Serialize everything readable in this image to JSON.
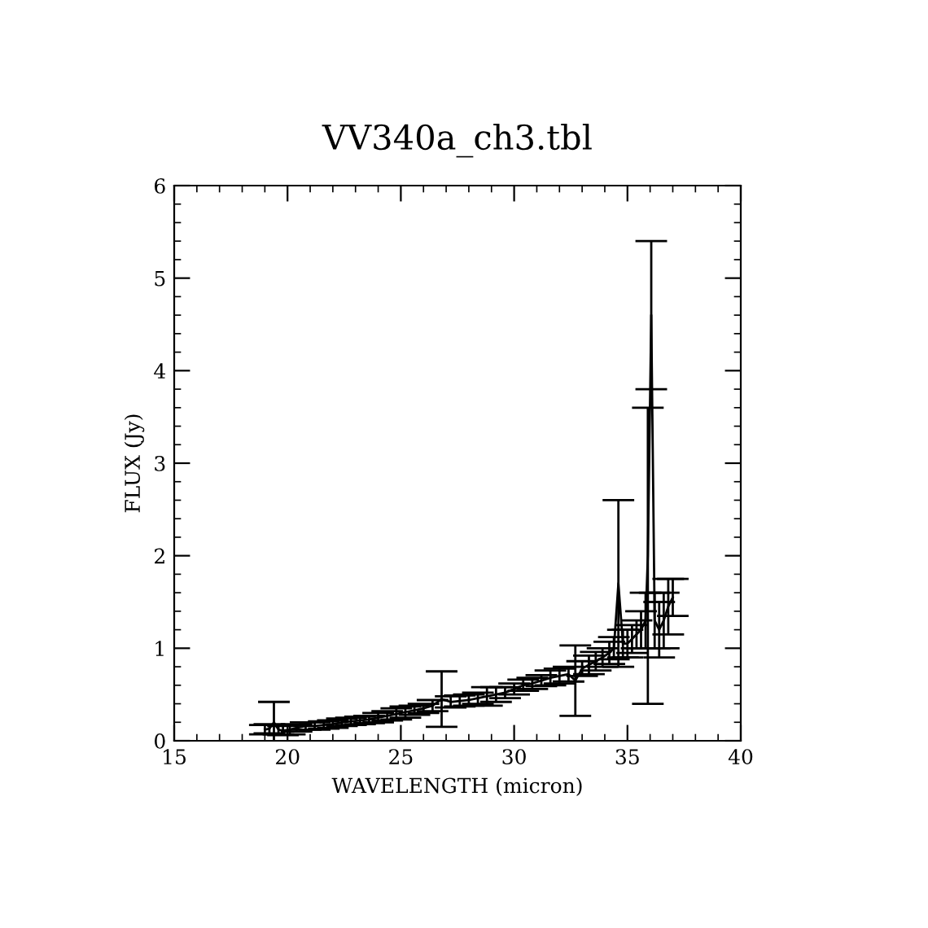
{
  "chart_data": {
    "type": "line",
    "title": "VV340a_ch3.tbl",
    "xlabel": "WAVELENGTH (micron)",
    "ylabel": "FLUX (Jy)",
    "xlim": [
      15,
      40
    ],
    "ylim": [
      0,
      6
    ],
    "xticks": [
      15,
      20,
      25,
      30,
      35,
      40
    ],
    "yticks": [
      0,
      1,
      2,
      3,
      4,
      5,
      6
    ],
    "grid": false,
    "marker": "none",
    "line_style": "solid",
    "series": [
      {
        "color": "#000000",
        "x": [
          19.0,
          19.2,
          19.4,
          19.6,
          19.8,
          20.1,
          20.4,
          20.8,
          21.2,
          21.6,
          22.0,
          22.4,
          22.8,
          23.2,
          23.6,
          24.0,
          24.4,
          24.8,
          25.2,
          25.6,
          26.0,
          26.4,
          26.8,
          27.2,
          27.6,
          28.0,
          28.4,
          28.8,
          29.2,
          29.6,
          30.0,
          30.4,
          30.8,
          31.2,
          31.6,
          32.0,
          32.4,
          32.7,
          33.0,
          33.3,
          33.6,
          33.9,
          34.2,
          34.4,
          34.6,
          34.8,
          35.0,
          35.2,
          35.4,
          35.6,
          35.8,
          35.9,
          36.05,
          36.2,
          36.4,
          36.6,
          36.8,
          37.0
        ],
        "values": [
          0.12,
          0.13,
          0.2,
          0.12,
          0.11,
          0.12,
          0.14,
          0.16,
          0.16,
          0.17,
          0.18,
          0.2,
          0.21,
          0.22,
          0.23,
          0.25,
          0.27,
          0.29,
          0.31,
          0.33,
          0.35,
          0.38,
          0.45,
          0.42,
          0.43,
          0.44,
          0.46,
          0.48,
          0.5,
          0.52,
          0.56,
          0.6,
          0.62,
          0.65,
          0.68,
          0.7,
          0.72,
          0.65,
          0.78,
          0.82,
          0.86,
          0.9,
          0.95,
          1.0,
          1.7,
          1.05,
          1.05,
          1.1,
          1.15,
          1.2,
          1.3,
          2.0,
          4.6,
          1.3,
          1.2,
          1.3,
          1.45,
          1.55
        ],
        "errors": [
          0.05,
          0.05,
          0.22,
          0.05,
          0.05,
          0.05,
          0.04,
          0.04,
          0.04,
          0.04,
          0.04,
          0.04,
          0.04,
          0.04,
          0.04,
          0.05,
          0.05,
          0.06,
          0.06,
          0.05,
          0.05,
          0.06,
          0.3,
          0.06,
          0.06,
          0.06,
          0.06,
          0.1,
          0.08,
          0.06,
          0.06,
          0.06,
          0.06,
          0.06,
          0.08,
          0.08,
          0.08,
          0.38,
          0.08,
          0.1,
          0.1,
          0.1,
          0.12,
          0.12,
          0.9,
          0.15,
          0.15,
          0.15,
          0.15,
          0.2,
          0.3,
          1.6,
          0.8,
          0.3,
          0.3,
          0.3,
          0.3,
          0.2
        ]
      }
    ]
  }
}
